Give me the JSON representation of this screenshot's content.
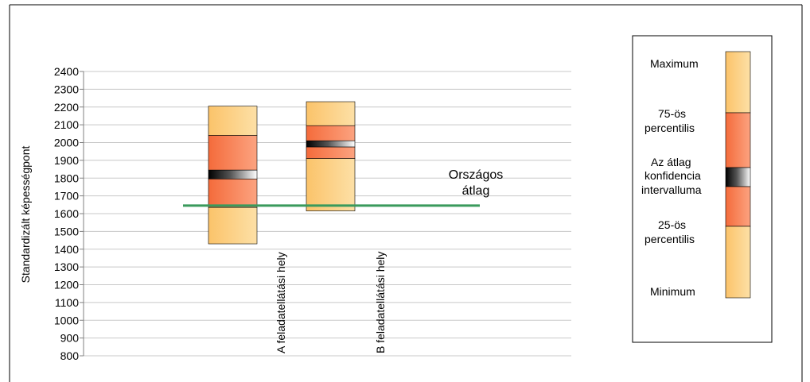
{
  "chart_data": {
    "type": "box",
    "ylabel": "Standardizált képességpont",
    "ylim": [
      800,
      2400
    ],
    "ytick_step": 100,
    "yticks": [
      "800",
      "900",
      "1000",
      "1100",
      "1200",
      "1300",
      "1400",
      "1500",
      "1600",
      "1700",
      "1800",
      "1900",
      "2000",
      "2100",
      "2200",
      "2300",
      "2400"
    ],
    "grid": true,
    "categories": [
      {
        "label": "A feladatellátási hely",
        "min": 1430,
        "p25": 1635,
        "ci_low": 1795,
        "ci_high": 1845,
        "p75": 2040,
        "max": 2205
      },
      {
        "label": "B feladatellátási hely",
        "min": 1615,
        "p25": 1910,
        "ci_low": 1975,
        "ci_high": 2010,
        "p75": 2095,
        "max": 2230
      }
    ],
    "reference_line": {
      "value": 1645,
      "label_line1": "Országos",
      "label_line2": "átlag",
      "color": "#3a9a5c"
    },
    "legend": {
      "position": "right",
      "items": {
        "maximum": "Maximum",
        "p75_line1": "75-ös",
        "p75_line2": "percentilis",
        "ci_line1": "Az átlag",
        "ci_line2": "konfidencia",
        "ci_line3": "intervalluma",
        "p25_line1": "25-ös",
        "p25_line2": "percentilis",
        "minimum": "Minimum"
      }
    },
    "colors": {
      "outer": "#fbc36a",
      "outer_light": "#fde0a6",
      "inner": "#f46b3b",
      "inner_light": "#fca380",
      "grid": "#c8c8c8",
      "axis": "#808080"
    }
  }
}
